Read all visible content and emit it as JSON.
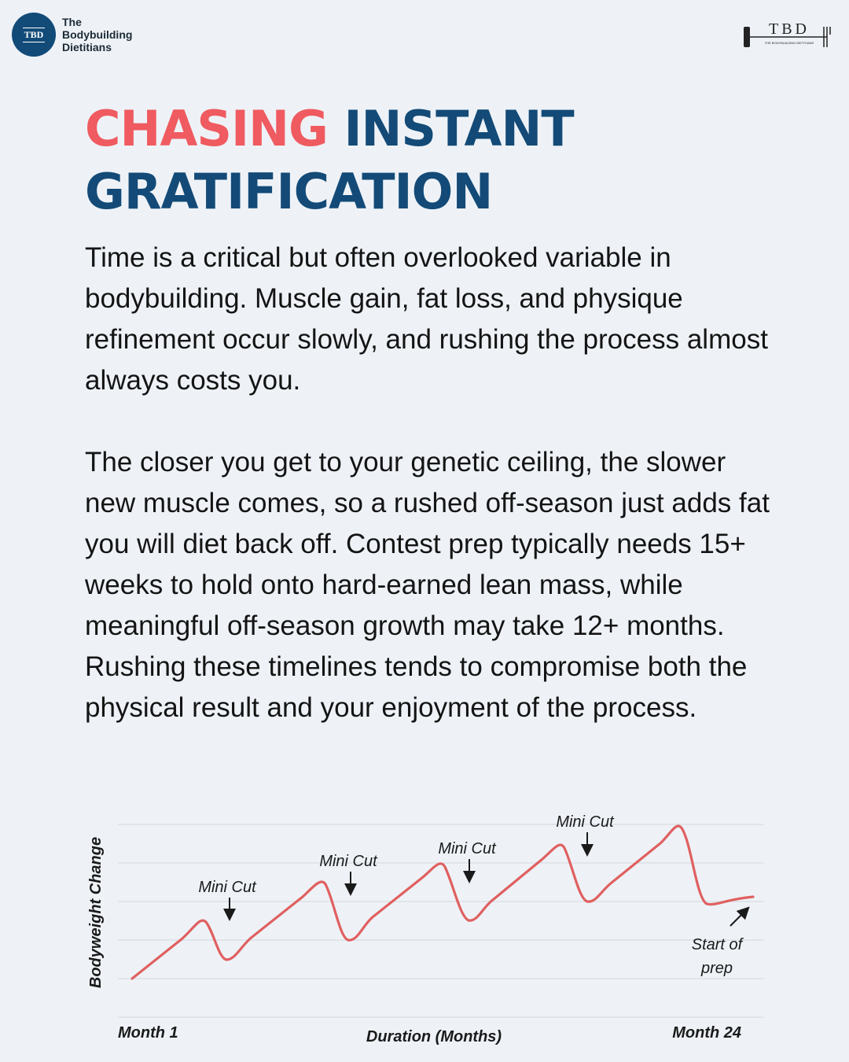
{
  "brand": {
    "badge": "TBD",
    "name_line1": "The",
    "name_line2": "Bodybuilding",
    "name_line3": "Dietitians"
  },
  "logo_right": {
    "text": "TBD",
    "tagline": "THE BODYBUILDING DIETITIANS"
  },
  "headline": {
    "accent": "CHASING",
    "rest1": "INSTANT",
    "line2": "GRATIFICATION",
    "accent_color": "#ef5b60",
    "main_color": "#134a77"
  },
  "paragraphs": [
    "Time is a critical but often overlooked variable in bodybuilding. Muscle gain, fat loss, and physique refinement occur slowly, and rushing the process almost always costs you.",
    "The closer you get to your genetic ceiling, the slower new muscle comes, so a rushed off-season just adds fat you will diet back off. Contest prep typically needs 15+ weeks to hold onto hard-earned lean mass, while meaningful off-season growth may take 12+ months. Rushing these timelines tends to compromise both the physical result and your enjoyment of the process."
  ],
  "chart_data": {
    "type": "line",
    "ylabel": "Bodyweight Change",
    "xlabel": "Duration (Months)",
    "x_start_label": "Month 1",
    "x_end_label": "Month 24",
    "line_color": "#e06060",
    "annotations": [
      "Mini Cut",
      "Mini Cut",
      "Mini Cut",
      "Mini Cut",
      "Start of",
      "prep"
    ]
  }
}
